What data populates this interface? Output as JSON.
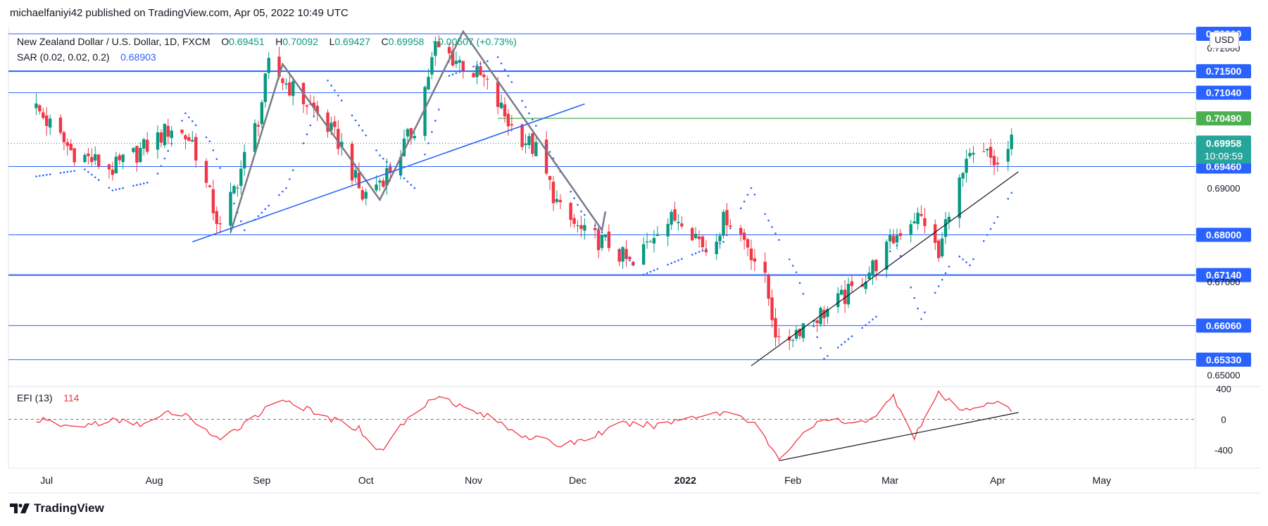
{
  "header": {
    "publish_text": "michaelfaniyi42 published on TradingView.com, Apr 05, 2022 10:49 UTC"
  },
  "legend": {
    "symbol": "New Zealand Dollar / U.S. Dollar, 1D, FXCM",
    "o_label": "O",
    "o_value": "0.69451",
    "h_label": "H",
    "h_value": "0.70092",
    "l_label": "L",
    "l_value": "0.69427",
    "c_label": "C",
    "c_value": "0.69958",
    "change": "+0.00507 (+0.73%)",
    "sar_label": "SAR (0.02, 0.02, 0.2)",
    "sar_value": "0.68903"
  },
  "efi_legend": {
    "label": "EFI (13)",
    "value": "114"
  },
  "currency_button": "USD",
  "footer": {
    "brand": "TradingView"
  },
  "colors": {
    "up": "#089981",
    "down": "#f23645",
    "level": "#2962ff",
    "resistance": "#4caf50",
    "pattern": "#787b86",
    "trend": "#2962ff",
    "efi": "#f23645"
  },
  "chart_data": [
    {
      "type": "candlestick",
      "title": "New Zealand Dollar / U.S. Dollar, 1D, FXCM",
      "x_ticks": [
        "Jul",
        "Aug",
        "Sep",
        "Oct",
        "Nov",
        "Dec",
        "2022",
        "Feb",
        "Mar",
        "Apr",
        "May"
      ],
      "y_ticks": [
        "0.72000",
        "0.69000",
        "0.65000"
      ],
      "ylim": [
        0.648,
        0.7245
      ],
      "horizontal_levels": [
        "0.72300",
        "0.71500",
        "0.71040",
        "0.69460",
        "0.68000",
        "0.67140",
        "0.66060",
        "0.65330"
      ],
      "resistance_level": "0.70490",
      "last_price": "0.69958",
      "countdown": "10:09:59",
      "hidden_axis_label": "0.67000",
      "price_path": [
        {
          "date": "2021-06-28",
          "close": 0.707
        },
        {
          "date": "2021-07-08",
          "close": 0.698
        },
        {
          "date": "2021-07-20",
          "close": 0.694
        },
        {
          "date": "2021-07-30",
          "close": 0.699
        },
        {
          "date": "2021-08-06",
          "close": 0.703
        },
        {
          "date": "2021-08-12",
          "close": 0.7
        },
        {
          "date": "2021-08-20",
          "close": 0.681
        },
        {
          "date": "2021-08-25",
          "close": 0.692
        },
        {
          "date": "2021-08-31",
          "close": 0.705
        },
        {
          "date": "2021-09-03",
          "close": 0.716
        },
        {
          "date": "2021-09-10",
          "close": 0.711
        },
        {
          "date": "2021-09-17",
          "close": 0.706
        },
        {
          "date": "2021-09-24",
          "close": 0.699
        },
        {
          "date": "2021-09-30",
          "close": 0.688
        },
        {
          "date": "2021-10-08",
          "close": 0.694
        },
        {
          "date": "2021-10-15",
          "close": 0.703
        },
        {
          "date": "2021-10-21",
          "close": 0.72
        },
        {
          "date": "2021-10-28",
          "close": 0.717
        },
        {
          "date": "2021-11-04",
          "close": 0.713
        },
        {
          "date": "2021-11-12",
          "close": 0.703
        },
        {
          "date": "2021-11-19",
          "close": 0.698
        },
        {
          "date": "2021-11-26",
          "close": 0.685
        },
        {
          "date": "2021-12-03",
          "close": 0.68
        },
        {
          "date": "2021-12-10",
          "close": 0.678
        },
        {
          "date": "2021-12-17",
          "close": 0.673
        },
        {
          "date": "2021-12-24",
          "close": 0.682
        },
        {
          "date": "2021-12-31",
          "close": 0.684
        },
        {
          "date": "2022-01-07",
          "close": 0.677
        },
        {
          "date": "2022-01-13",
          "close": 0.684
        },
        {
          "date": "2022-01-19",
          "close": 0.678
        },
        {
          "date": "2022-01-24",
          "close": 0.67
        },
        {
          "date": "2022-01-28",
          "close": 0.656
        },
        {
          "date": "2022-02-04",
          "close": 0.661
        },
        {
          "date": "2022-02-11",
          "close": 0.664
        },
        {
          "date": "2022-02-18",
          "close": 0.668
        },
        {
          "date": "2022-02-25",
          "close": 0.674
        },
        {
          "date": "2022-03-04",
          "close": 0.681
        },
        {
          "date": "2022-03-08",
          "close": 0.684
        },
        {
          "date": "2022-03-11",
          "close": 0.683
        },
        {
          "date": "2022-03-15",
          "close": 0.675
        },
        {
          "date": "2022-03-18",
          "close": 0.686
        },
        {
          "date": "2022-03-24",
          "close": 0.696
        },
        {
          "date": "2022-03-29",
          "close": 0.697
        },
        {
          "date": "2022-04-01",
          "close": 0.6945
        },
        {
          "date": "2022-04-05",
          "close": 0.69958
        }
      ],
      "sar_path": [
        {
          "date": "2021-06-28",
          "value": 0.6925
        },
        {
          "date": "2021-07-12",
          "value": 0.694
        },
        {
          "date": "2021-07-20",
          "value": 0.6895
        },
        {
          "date": "2021-08-01",
          "value": 0.6915
        },
        {
          "date": "2021-08-10",
          "value": 0.706
        },
        {
          "date": "2021-08-17",
          "value": 0.7
        },
        {
          "date": "2021-08-27",
          "value": 0.681
        },
        {
          "date": "2021-09-08",
          "value": 0.69
        },
        {
          "date": "2021-09-20",
          "value": 0.713
        },
        {
          "date": "2021-10-05",
          "value": 0.697
        },
        {
          "date": "2021-10-15",
          "value": 0.69
        },
        {
          "date": "2021-10-25",
          "value": 0.714
        },
        {
          "date": "2021-11-08",
          "value": 0.718
        },
        {
          "date": "2021-11-20",
          "value": 0.702
        },
        {
          "date": "2021-12-02",
          "value": 0.685
        },
        {
          "date": "2021-12-20",
          "value": 0.6715
        },
        {
          "date": "2022-01-12",
          "value": 0.6785
        },
        {
          "date": "2022-01-20",
          "value": 0.69
        },
        {
          "date": "2022-02-02",
          "value": 0.672
        },
        {
          "date": "2022-02-10",
          "value": 0.6535
        },
        {
          "date": "2022-02-25",
          "value": 0.6625
        },
        {
          "date": "2022-03-02",
          "value": 0.68
        },
        {
          "date": "2022-03-10",
          "value": 0.662
        },
        {
          "date": "2022-03-20",
          "value": 0.676
        },
        {
          "date": "2022-03-24",
          "value": 0.6735
        },
        {
          "date": "2022-04-05",
          "value": 0.689
        }
      ],
      "pattern_lines": [
        [
          {
            "date": "2021-08-23",
            "price": 0.6805
          },
          {
            "date": "2021-09-07",
            "price": 0.7165
          },
          {
            "date": "2021-10-05",
            "price": 0.6875
          },
          {
            "date": "2021-10-29",
            "price": 0.7235
          },
          {
            "date": "2021-12-08",
            "price": 0.681
          },
          {
            "date": "2021-12-09",
            "price": 0.685
          }
        ]
      ],
      "trend_lines": [
        {
          "from": {
            "date": "2021-08-12",
            "price": 0.6785
          },
          "to": {
            "date": "2021-12-03",
            "price": 0.708
          }
        },
        {
          "from": {
            "date": "2022-01-20",
            "price": 0.652
          },
          "to": {
            "date": "2022-04-07",
            "price": 0.6935
          }
        }
      ],
      "resistance_segment": {
        "from": "2021-11-08",
        "to": "2022-04-30"
      }
    },
    {
      "type": "line",
      "title": "EFI (13)",
      "value": "114",
      "y_ticks": [
        "400",
        "0",
        "-400"
      ],
      "ylim": [
        -620,
        400
      ],
      "zero_line": true,
      "series_path": [
        {
          "date": "2021-06-28",
          "value": 0
        },
        {
          "date": "2021-07-08",
          "value": -100
        },
        {
          "date": "2021-07-20",
          "value": -20
        },
        {
          "date": "2021-07-30",
          "value": -60
        },
        {
          "date": "2021-08-06",
          "value": 100
        },
        {
          "date": "2021-08-12",
          "value": 10
        },
        {
          "date": "2021-08-20",
          "value": -300
        },
        {
          "date": "2021-08-27",
          "value": -40
        },
        {
          "date": "2021-09-07",
          "value": 280
        },
        {
          "date": "2021-09-17",
          "value": 60
        },
        {
          "date": "2021-09-29",
          "value": -120
        },
        {
          "date": "2021-10-05",
          "value": -420
        },
        {
          "date": "2021-10-12",
          "value": -40
        },
        {
          "date": "2021-10-22",
          "value": 340
        },
        {
          "date": "2021-10-29",
          "value": 150
        },
        {
          "date": "2021-11-05",
          "value": 40
        },
        {
          "date": "2021-11-15",
          "value": -200
        },
        {
          "date": "2021-11-26",
          "value": -340
        },
        {
          "date": "2021-12-03",
          "value": -260
        },
        {
          "date": "2021-12-14",
          "value": -60
        },
        {
          "date": "2021-12-24",
          "value": -80
        },
        {
          "date": "2022-01-03",
          "value": 40
        },
        {
          "date": "2022-01-14",
          "value": 100
        },
        {
          "date": "2022-01-21",
          "value": -40
        },
        {
          "date": "2022-01-28",
          "value": -540
        },
        {
          "date": "2022-02-04",
          "value": -160
        },
        {
          "date": "2022-02-11",
          "value": 10
        },
        {
          "date": "2022-02-18",
          "value": -80
        },
        {
          "date": "2022-02-25",
          "value": 60
        },
        {
          "date": "2022-03-02",
          "value": 300
        },
        {
          "date": "2022-03-08",
          "value": -220
        },
        {
          "date": "2022-03-15",
          "value": 330
        },
        {
          "date": "2022-03-22",
          "value": 100
        },
        {
          "date": "2022-03-30",
          "value": 240
        },
        {
          "date": "2022-04-05",
          "value": 114
        }
      ],
      "trend_line": {
        "from": {
          "date": "2022-01-28",
          "value": -540
        },
        "to": {
          "date": "2022-04-07",
          "value": 90
        }
      }
    }
  ]
}
